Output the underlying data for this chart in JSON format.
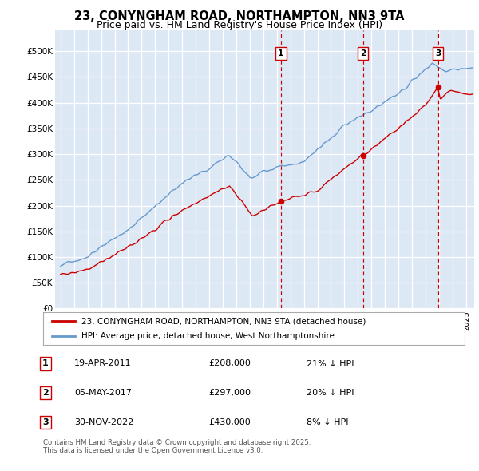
{
  "title": "23, CONYNGHAM ROAD, NORTHAMPTON, NN3 9TA",
  "subtitle": "Price paid vs. HM Land Registry's House Price Index (HPI)",
  "ylabel_ticks": [
    "£0",
    "£50K",
    "£100K",
    "£150K",
    "£200K",
    "£250K",
    "£300K",
    "£350K",
    "£400K",
    "£450K",
    "£500K"
  ],
  "ylim": [
    0,
    540000
  ],
  "ytick_values": [
    0,
    50000,
    100000,
    150000,
    200000,
    250000,
    300000,
    350000,
    400000,
    450000,
    500000
  ],
  "sale_dates_num": [
    2011.3,
    2017.37,
    2022.92
  ],
  "sale_prices": [
    208000,
    297000,
    430000
  ],
  "sale_labels": [
    "1",
    "2",
    "3"
  ],
  "legend_house_label": "23, CONYNGHAM ROAD, NORTHAMPTON, NN3 9TA (detached house)",
  "legend_hpi_label": "HPI: Average price, detached house, West Northamptonshire",
  "table_rows": [
    [
      "1",
      "19-APR-2011",
      "£208,000",
      "21% ↓ HPI"
    ],
    [
      "2",
      "05-MAY-2017",
      "£297,000",
      "20% ↓ HPI"
    ],
    [
      "3",
      "30-NOV-2022",
      "£430,000",
      "8% ↓ HPI"
    ]
  ],
  "footnote": "Contains HM Land Registry data © Crown copyright and database right 2025.\nThis data is licensed under the Open Government Licence v3.0.",
  "house_color": "#cc0000",
  "hpi_color": "#6699cc",
  "background_color": "#ffffff",
  "plot_bg_color": "#dde8f5",
  "title_fontsize": 10.5,
  "subtitle_fontsize": 9
}
